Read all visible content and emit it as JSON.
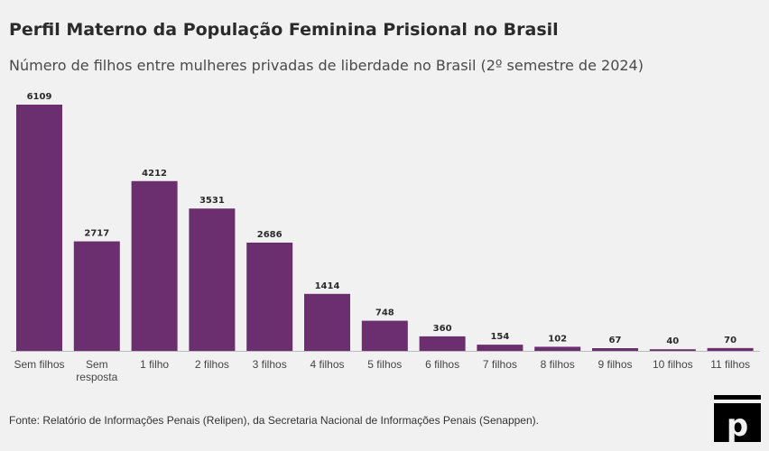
{
  "header": {
    "title": "Perfil Materno da População Feminina Prisional no Brasil",
    "subtitle": "Número de filhos entre mulheres privadas de liberdade no Brasil (2º semestre de 2024)"
  },
  "footer": {
    "source": "Fonte: Relatório de Informações Penais (Relipen), da Secretaria Nacional de Informações Penais (Senappen)."
  },
  "colors": {
    "bar": "#6b2f70",
    "label": "#2b2b2b",
    "axis": "#bbbbbb"
  },
  "logo": {
    "icon": "publisher-p-logo-icon"
  },
  "chart_data": {
    "type": "bar",
    "categories": [
      "Sem filhos",
      "Sem resposta",
      "1 filho",
      "2 filhos",
      "3 filhos",
      "4 filhos",
      "5 filhos",
      "6 filhos",
      "7 filhos",
      "8 filhos",
      "9 filhos",
      "10 filhos",
      "11 filhos"
    ],
    "values": [
      6109,
      2717,
      4212,
      3531,
      2686,
      1414,
      748,
      360,
      154,
      102,
      67,
      40,
      70
    ],
    "title": "Perfil Materno da População Feminina Prisional no Brasil",
    "subtitle": "Número de filhos entre mulheres privadas de liberdade no Brasil (2º semestre de 2024)",
    "xlabel": "",
    "ylabel": "",
    "ylim": [
      0,
      6109
    ],
    "grid": false,
    "legend": "none"
  }
}
